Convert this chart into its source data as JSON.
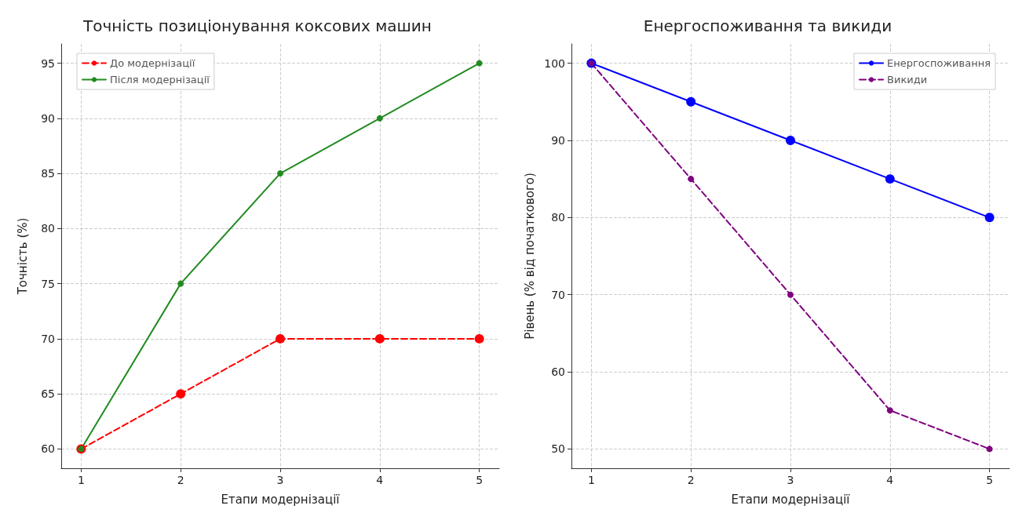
{
  "chart_data": [
    {
      "type": "line",
      "title": "Точність позиціонування коксових машин",
      "xlabel": "Етапи модернізації",
      "ylabel": "Точність (%)",
      "x": [
        1,
        2,
        3,
        4,
        5
      ],
      "xlim": [
        0.8,
        5.2
      ],
      "xticks": [
        1,
        2,
        3,
        4,
        5
      ],
      "ylim": [
        58.25,
        96.75
      ],
      "yticks": [
        60,
        65,
        70,
        75,
        80,
        85,
        90,
        95
      ],
      "grid": true,
      "legend": "top left",
      "marker": "circle",
      "series": [
        {
          "name": "До модернізації",
          "color": "#ff0000",
          "line_style": "dashed",
          "values": [
            60,
            65,
            70,
            70,
            70
          ]
        },
        {
          "name": "Після модернізації",
          "color": "#228b22",
          "line_style": "solid",
          "values": [
            60,
            75,
            85,
            90,
            95
          ]
        }
      ]
    },
    {
      "type": "line",
      "title": "Енергоспоживання та викиди",
      "xlabel": "Етапи модернізації",
      "ylabel": "Рівень (% від початкового)",
      "x": [
        1,
        2,
        3,
        4,
        5
      ],
      "xlim": [
        0.8,
        5.2
      ],
      "xticks": [
        1,
        2,
        3,
        4,
        5
      ],
      "ylim": [
        47.5,
        102.5
      ],
      "yticks": [
        50,
        60,
        70,
        80,
        90,
        100
      ],
      "grid": true,
      "legend": "top right",
      "marker": "circle",
      "series": [
        {
          "name": "Енергоспоживання",
          "color": "#0000ff",
          "line_style": "solid",
          "values": [
            100,
            95,
            90,
            85,
            80
          ]
        },
        {
          "name": "Викиди",
          "color": "#800080",
          "line_style": "dashed",
          "values": [
            100,
            85,
            70,
            55,
            50
          ]
        }
      ]
    }
  ]
}
